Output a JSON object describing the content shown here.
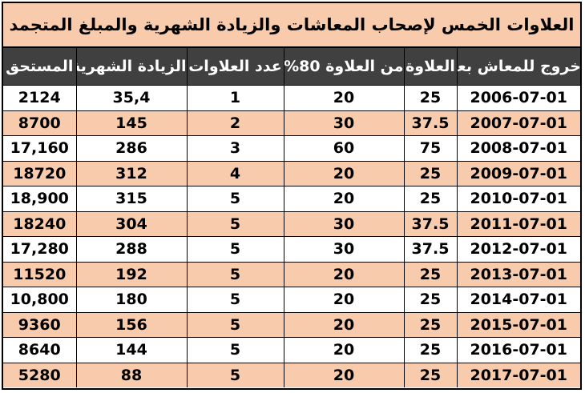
{
  "title": "العلاوات الخمس لإصحاب المعاشات والزيادة الشهرية والمبلغ المتجمد",
  "headers": [
    "المستحق",
    "الزيادة الشهرية",
    "عدد العلاوات",
    "من العلاوة 80%",
    "العلاوة",
    "خروج للمعاش بعد"
  ],
  "rows": [
    [
      "2124",
      "35,4",
      "1",
      "20",
      "25",
      "2006-07-01"
    ],
    [
      "8700",
      "145",
      "2",
      "30",
      "37.5",
      "2007-07-01"
    ],
    [
      "17,160",
      "286",
      "3",
      "60",
      "75",
      "2008-07-01"
    ],
    [
      "18720",
      "312",
      "4",
      "20",
      "25",
      "2009-07-01"
    ],
    [
      "18,900",
      "315",
      "5",
      "20",
      "25",
      "2010-07-01"
    ],
    [
      "18240",
      "304",
      "5",
      "30",
      "37.5",
      "2011-07-01"
    ],
    [
      "17,280",
      "288",
      "5",
      "30",
      "37.5",
      "2012-07-01"
    ],
    [
      "11520",
      "192",
      "5",
      "20",
      "25",
      "2013-07-01"
    ],
    [
      "10,800",
      "180",
      "5",
      "20",
      "25",
      "2014-07-01"
    ],
    [
      "9360",
      "156",
      "5",
      "20",
      "25",
      "2015-07-01"
    ],
    [
      "8640",
      "144",
      "5",
      "20",
      "25",
      "2016-07-01"
    ],
    [
      "5280",
      "88",
      "5",
      "20",
      "25",
      "2017-07-01"
    ]
  ],
  "colors": {
    "header_bg": "#404040",
    "title_bg": "#f8cbad",
    "stripe": "#f8cbad"
  }
}
